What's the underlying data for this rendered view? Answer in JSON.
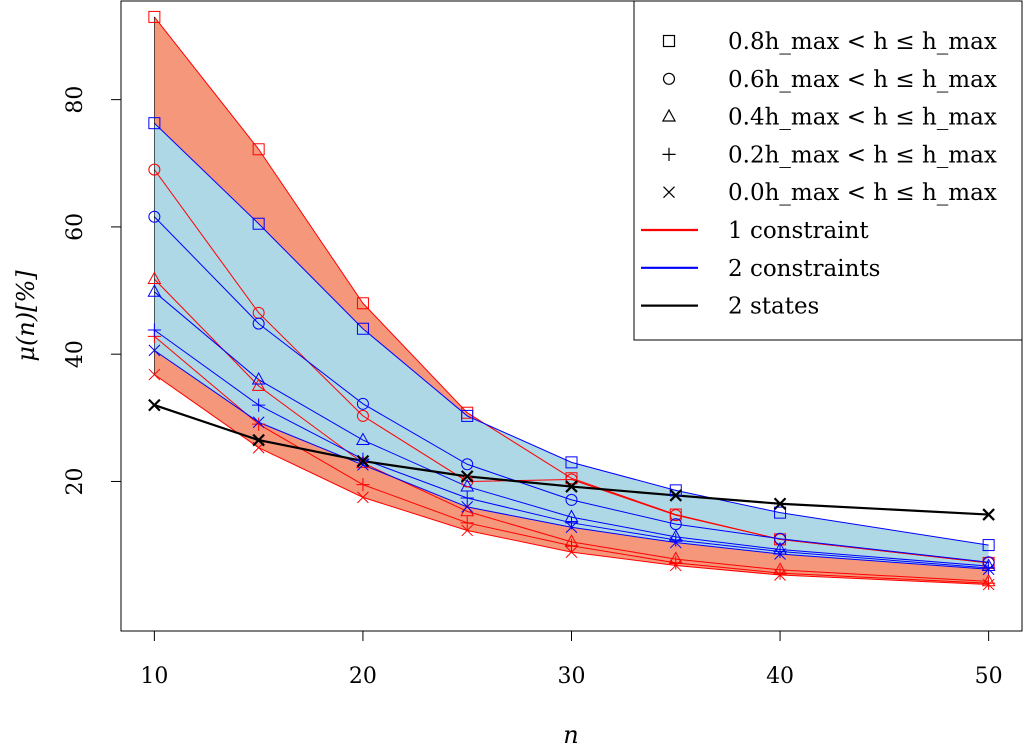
{
  "chart_data": {
    "type": "line",
    "title": "",
    "xlabel": "n",
    "ylabel": "μ(n)[%]",
    "xlim": [
      8.4,
      51.6
    ],
    "ylim": [
      -3.5,
      95.5
    ],
    "x": [
      10,
      15,
      20,
      25,
      30,
      35,
      40,
      50
    ],
    "xticks": [
      10,
      20,
      30,
      40,
      50
    ],
    "yticks": [
      20,
      40,
      60,
      80
    ],
    "grid": false,
    "legend_position": "top-right",
    "colors": {
      "red_line": "#ff0000",
      "blue_line": "#0000ff",
      "black_line": "#000000",
      "red_fill": "#f4977a",
      "blue_fill": "#aed8e6"
    },
    "legend": [
      {
        "kind": "marker",
        "marker": "square",
        "label": "0.8h_max < h ≤ h_max"
      },
      {
        "kind": "marker",
        "marker": "circle",
        "label": "0.6h_max < h ≤ h_max"
      },
      {
        "kind": "marker",
        "marker": "triangle",
        "label": "0.4h_max < h ≤ h_max"
      },
      {
        "kind": "marker",
        "marker": "plus",
        "label": "0.2h_max < h ≤ h_max"
      },
      {
        "kind": "marker",
        "marker": "cross",
        "label": "0.0h_max < h ≤ h_max"
      },
      {
        "kind": "line",
        "color": "#ff0000",
        "label": "1 constraint"
      },
      {
        "kind": "line",
        "color": "#0000ff",
        "label": "2 constraints"
      },
      {
        "kind": "line",
        "color": "#000000",
        "label": "2 states"
      }
    ],
    "series": [
      {
        "group": "1 constraint",
        "marker": "square",
        "color": "#ff0000",
        "values": [
          93,
          72.2,
          48,
          30.8,
          20.5,
          14.8,
          10.9,
          7.2
        ]
      },
      {
        "group": "1 constraint",
        "marker": "circle",
        "color": "#ff0000",
        "values": [
          69,
          46.5,
          30.3,
          20,
          20.3,
          14.7,
          10.9,
          7.2
        ]
      },
      {
        "group": "1 constraint",
        "marker": "triangle",
        "color": "#ff0000",
        "values": [
          51.8,
          35,
          22.9,
          15.3,
          10.5,
          7.8,
          6.1,
          4.3
        ]
      },
      {
        "group": "1 constraint",
        "marker": "plus",
        "color": "#ff0000",
        "values": [
          42.8,
          29,
          19.5,
          13.5,
          9.9,
          7.2,
          5.6,
          4
        ]
      },
      {
        "group": "1 constraint",
        "marker": "cross",
        "color": "#ff0000",
        "values": [
          36.8,
          25.3,
          17.5,
          12.3,
          8.9,
          6.8,
          5.3,
          3.8
        ]
      },
      {
        "group": "2 constraints",
        "marker": "square",
        "color": "#0000ff",
        "values": [
          76.3,
          60.5,
          44,
          30.3,
          23,
          18.6,
          15.1,
          10
        ]
      },
      {
        "group": "2 constraints",
        "marker": "circle",
        "color": "#0000ff",
        "values": [
          61.6,
          44.8,
          32.2,
          22.7,
          17.1,
          13.3,
          11,
          7.3
        ]
      },
      {
        "group": "2 constraints",
        "marker": "triangle",
        "color": "#0000ff",
        "values": [
          49.8,
          36,
          26.5,
          19.2,
          14.4,
          11.3,
          9.3,
          6.7
        ]
      },
      {
        "group": "2 constraints",
        "marker": "plus",
        "color": "#0000ff",
        "values": [
          43.8,
          32,
          23.5,
          17.4,
          13.5,
          10.8,
          9,
          6.4
        ]
      },
      {
        "group": "2 constraints",
        "marker": "cross",
        "color": "#0000ff",
        "values": [
          40.6,
          29.3,
          22.6,
          16,
          12.8,
          10.4,
          8.6,
          6.2
        ]
      },
      {
        "group": "2 states",
        "marker": "cross",
        "color": "#000000",
        "values": [
          32,
          26.5,
          23.2,
          20.8,
          19.2,
          17.8,
          16.5,
          14.8
        ]
      }
    ]
  }
}
